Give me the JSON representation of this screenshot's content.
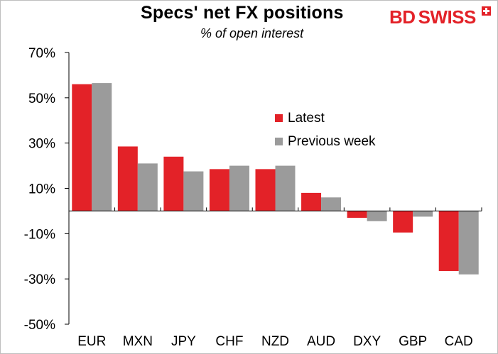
{
  "header": {
    "title": "Specs' net FX positions",
    "subtitle": "% of open interest",
    "logo": {
      "part1": "BD",
      "part2": "SWISS"
    }
  },
  "colors": {
    "latest": "#e32228",
    "previous": "#9b9b9b",
    "logo": "#e32228"
  },
  "chart_data": {
    "type": "bar",
    "title": "Specs' net FX positions",
    "subtitle": "% of open interest",
    "categories": [
      "EUR",
      "MXN",
      "JPY",
      "CHF",
      "NZD",
      "AUD",
      "DXY",
      "GBP",
      "CAD"
    ],
    "series": [
      {
        "name": "Latest",
        "values": [
          56,
          28.5,
          24,
          18.5,
          18.5,
          8,
          -3,
          -9.5,
          -26.5
        ]
      },
      {
        "name": "Previous week",
        "values": [
          56.5,
          21,
          17.5,
          20,
          20,
          6,
          -4.5,
          -2.5,
          -28
        ]
      }
    ],
    "yticks": [
      70,
      50,
      30,
      10,
      -10,
      -30,
      -50
    ],
    "ytick_labels": [
      "70%",
      "50%",
      "30%",
      "10%",
      "-10%",
      "-30%",
      "-50%"
    ],
    "ylim": [
      -50,
      70
    ],
    "xlabel": "",
    "ylabel": "",
    "legend_position": "right-center",
    "grid": false
  }
}
